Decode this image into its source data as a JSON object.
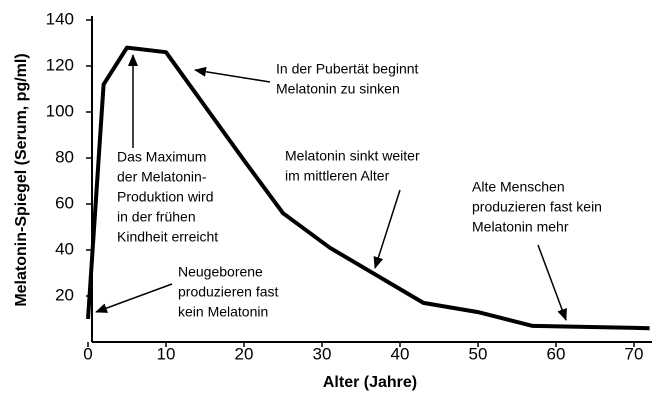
{
  "chart_data": {
    "type": "line",
    "x_label": "Alter (Jahre)",
    "y_label": "Melatonin-Spiegel (Serum, pg/ml)",
    "x": [
      0,
      2,
      5,
      10,
      20,
      25,
      31,
      38,
      43,
      50,
      57,
      72
    ],
    "series": [
      {
        "name": "Melatonin",
        "color": "#000000",
        "values": [
          10,
          112,
          128,
          126,
          79,
          56,
          41,
          27,
          17,
          13,
          7,
          6
        ]
      }
    ],
    "xlim": [
      0,
      72
    ],
    "xticks": [
      0,
      10,
      20,
      30,
      40,
      50,
      60,
      70
    ],
    "ylim": [
      0,
      140
    ],
    "yticks": [
      20,
      40,
      60,
      80,
      100,
      120,
      140
    ],
    "annotations": [
      {
        "lines": [
          "In der Pubertät beginnt",
          "Melatonin zu sinken"
        ]
      },
      {
        "lines": [
          "Das Maximum",
          "der Melatonin-",
          "Produktion wird",
          "in der frühen",
          "Kindheit erreicht"
        ]
      },
      {
        "lines": [
          "Melatonin sinkt weiter",
          "im mittleren Alter"
        ]
      },
      {
        "lines": [
          "Alte Menschen",
          "produzieren fast kein",
          "Melatonin mehr"
        ]
      },
      {
        "lines": [
          "Neugeborene",
          "produzieren fast",
          "kein Melatonin"
        ]
      }
    ]
  }
}
